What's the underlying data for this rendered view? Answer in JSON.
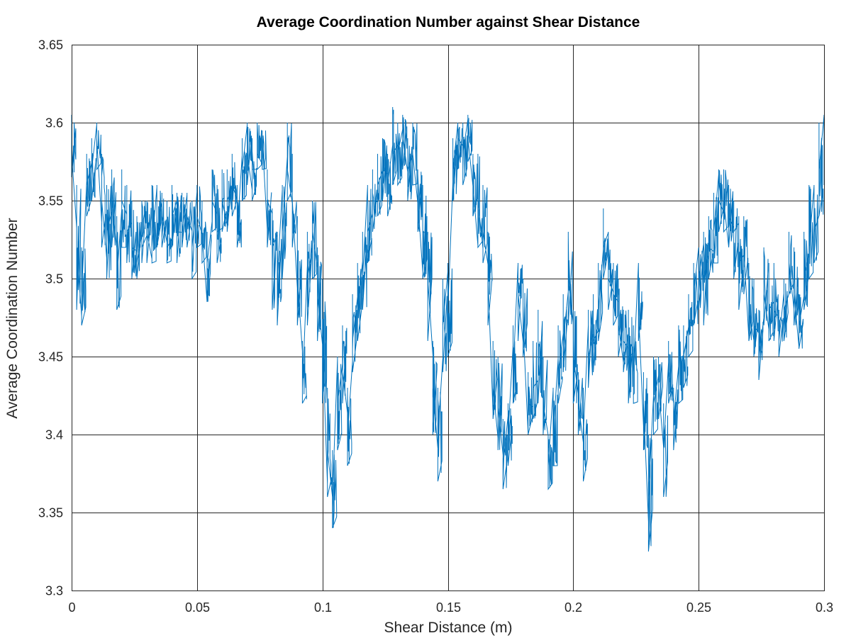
{
  "chart_data": {
    "type": "line",
    "title": "Average Coordination Number against Shear Distance",
    "xlabel": "Shear Distance (m)",
    "ylabel": "Average Coordination Number",
    "xlim": [
      0,
      0.3
    ],
    "ylim": [
      3.3,
      3.65
    ],
    "xticks": [
      0,
      0.05,
      0.1,
      0.15,
      0.2,
      0.25,
      0.3
    ],
    "yticks": [
      3.3,
      3.35,
      3.4,
      3.45,
      3.5,
      3.55,
      3.6,
      3.65
    ],
    "xtick_labels": [
      "0",
      "0.05",
      "0.1",
      "0.15",
      "0.2",
      "0.25",
      "0.3"
    ],
    "ytick_labels": [
      "3.3",
      "3.35",
      "3.4",
      "3.45",
      "3.5",
      "3.55",
      "3.6",
      "3.65"
    ],
    "grid": true,
    "color": "#0072bd",
    "series": [
      {
        "x": [
          0,
          0.002,
          0.004,
          0.006,
          0.008,
          0.01,
          0.012,
          0.014,
          0.016,
          0.018,
          0.02,
          0.022,
          0.024,
          0.026,
          0.028,
          0.03,
          0.032,
          0.034,
          0.036,
          0.038,
          0.04,
          0.042,
          0.044,
          0.046,
          0.048,
          0.05,
          0.052,
          0.054,
          0.056,
          0.058,
          0.06,
          0.062,
          0.064,
          0.066,
          0.068,
          0.07,
          0.072,
          0.074,
          0.076,
          0.078,
          0.08,
          0.082,
          0.084,
          0.086,
          0.088,
          0.09,
          0.092,
          0.094,
          0.096,
          0.098,
          0.1,
          0.102,
          0.104,
          0.106,
          0.108,
          0.11,
          0.112,
          0.114,
          0.116,
          0.118,
          0.12,
          0.122,
          0.124,
          0.126,
          0.128,
          0.13,
          0.132,
          0.134,
          0.136,
          0.138,
          0.14,
          0.142,
          0.144,
          0.146,
          0.148,
          0.15,
          0.152,
          0.154,
          0.156,
          0.158,
          0.16,
          0.162,
          0.164,
          0.166,
          0.168,
          0.17,
          0.172,
          0.174,
          0.176,
          0.178,
          0.18,
          0.182,
          0.184,
          0.186,
          0.188,
          0.19,
          0.192,
          0.194,
          0.196,
          0.198,
          0.2,
          0.202,
          0.204,
          0.206,
          0.208,
          0.21,
          0.212,
          0.214,
          0.216,
          0.218,
          0.22,
          0.222,
          0.224,
          0.226,
          0.228,
          0.23,
          0.232,
          0.234,
          0.236,
          0.238,
          0.24,
          0.242,
          0.244,
          0.246,
          0.248,
          0.25,
          0.252,
          0.254,
          0.256,
          0.258,
          0.26,
          0.262,
          0.264,
          0.266,
          0.268,
          0.27,
          0.272,
          0.274,
          0.276,
          0.278,
          0.28,
          0.282,
          0.284,
          0.286,
          0.288,
          0.29,
          0.292,
          0.294,
          0.296,
          0.298,
          0.3
        ],
        "y": [
          3.58,
          3.52,
          3.49,
          3.56,
          3.57,
          3.59,
          3.55,
          3.53,
          3.55,
          3.5,
          3.55,
          3.53,
          3.52,
          3.51,
          3.52,
          3.53,
          3.52,
          3.53,
          3.54,
          3.52,
          3.54,
          3.53,
          3.53,
          3.54,
          3.52,
          3.54,
          3.53,
          3.51,
          3.55,
          3.53,
          3.55,
          3.55,
          3.56,
          3.53,
          3.57,
          3.58,
          3.57,
          3.58,
          3.59,
          3.55,
          3.52,
          3.5,
          3.53,
          3.57,
          3.55,
          3.5,
          3.43,
          3.5,
          3.53,
          3.49,
          3.46,
          3.39,
          3.36,
          3.42,
          3.44,
          3.4,
          3.46,
          3.48,
          3.5,
          3.53,
          3.55,
          3.56,
          3.57,
          3.56,
          3.58,
          3.58,
          3.59,
          3.57,
          3.58,
          3.55,
          3.53,
          3.5,
          3.43,
          3.4,
          3.47,
          3.48,
          3.57,
          3.59,
          3.58,
          3.59,
          3.56,
          3.55,
          3.53,
          3.5,
          3.43,
          3.42,
          3.38,
          3.4,
          3.44,
          3.49,
          3.47,
          3.42,
          3.43,
          3.45,
          3.42,
          3.38,
          3.4,
          3.44,
          3.46,
          3.5,
          3.45,
          3.42,
          3.4,
          3.45,
          3.46,
          3.48,
          3.52,
          3.5,
          3.49,
          3.47,
          3.46,
          3.45,
          3.44,
          3.48,
          3.42,
          3.36,
          3.42,
          3.43,
          3.39,
          3.44,
          3.41,
          3.45,
          3.45,
          3.47,
          3.49,
          3.5,
          3.5,
          3.52,
          3.53,
          3.55,
          3.55,
          3.54,
          3.53,
          3.51,
          3.52,
          3.48,
          3.47,
          3.45,
          3.49,
          3.48,
          3.48,
          3.46,
          3.48,
          3.51,
          3.49,
          3.47,
          3.5,
          3.52,
          3.53,
          3.57,
          3.58
        ],
        "range": [
          [
            3.565,
            3.605
          ],
          [
            3.48,
            3.56
          ],
          [
            3.47,
            3.52
          ],
          [
            3.54,
            3.58
          ],
          [
            3.55,
            3.59
          ],
          [
            3.57,
            3.6
          ],
          [
            3.52,
            3.58
          ],
          [
            3.5,
            3.56
          ],
          [
            3.52,
            3.57
          ],
          [
            3.48,
            3.54
          ],
          [
            3.52,
            3.57
          ],
          [
            3.51,
            3.56
          ],
          [
            3.5,
            3.55
          ],
          [
            3.5,
            3.54
          ],
          [
            3.51,
            3.55
          ],
          [
            3.51,
            3.55
          ],
          [
            3.51,
            3.56
          ],
          [
            3.52,
            3.56
          ],
          [
            3.52,
            3.555
          ],
          [
            3.51,
            3.55
          ],
          [
            3.52,
            3.56
          ],
          [
            3.51,
            3.555
          ],
          [
            3.52,
            3.555
          ],
          [
            3.52,
            3.555
          ],
          [
            3.5,
            3.55
          ],
          [
            3.52,
            3.56
          ],
          [
            3.51,
            3.55
          ],
          [
            3.485,
            3.53
          ],
          [
            3.53,
            3.57
          ],
          [
            3.51,
            3.56
          ],
          [
            3.53,
            3.57
          ],
          [
            3.53,
            3.57
          ],
          [
            3.54,
            3.58
          ],
          [
            3.52,
            3.56
          ],
          [
            3.55,
            3.59
          ],
          [
            3.56,
            3.6
          ],
          [
            3.55,
            3.59
          ],
          [
            3.57,
            3.6
          ],
          [
            3.57,
            3.595
          ],
          [
            3.52,
            3.57
          ],
          [
            3.48,
            3.545
          ],
          [
            3.47,
            3.53
          ],
          [
            3.5,
            3.56
          ],
          [
            3.55,
            3.6
          ],
          [
            3.52,
            3.58
          ],
          [
            3.47,
            3.54
          ],
          [
            3.42,
            3.46
          ],
          [
            3.47,
            3.53
          ],
          [
            3.5,
            3.55
          ],
          [
            3.46,
            3.52
          ],
          [
            3.42,
            3.5
          ],
          [
            3.36,
            3.43
          ],
          [
            3.34,
            3.39
          ],
          [
            3.39,
            3.45
          ],
          [
            3.42,
            3.47
          ],
          [
            3.38,
            3.43
          ],
          [
            3.44,
            3.49
          ],
          [
            3.46,
            3.51
          ],
          [
            3.48,
            3.53
          ],
          [
            3.51,
            3.56
          ],
          [
            3.53,
            3.57
          ],
          [
            3.54,
            3.58
          ],
          [
            3.55,
            3.59
          ],
          [
            3.54,
            3.58
          ],
          [
            3.56,
            3.61
          ],
          [
            3.56,
            3.6
          ],
          [
            3.57,
            3.605
          ],
          [
            3.55,
            3.59
          ],
          [
            3.56,
            3.6
          ],
          [
            3.53,
            3.57
          ],
          [
            3.5,
            3.56
          ],
          [
            3.46,
            3.53
          ],
          [
            3.4,
            3.46
          ],
          [
            3.37,
            3.43
          ],
          [
            3.44,
            3.5
          ],
          [
            3.45,
            3.51
          ],
          [
            3.55,
            3.59
          ],
          [
            3.57,
            3.6
          ],
          [
            3.56,
            3.6
          ],
          [
            3.575,
            3.605
          ],
          [
            3.54,
            3.58
          ],
          [
            3.52,
            3.58
          ],
          [
            3.51,
            3.56
          ],
          [
            3.47,
            3.53
          ],
          [
            3.41,
            3.46
          ],
          [
            3.39,
            3.45
          ],
          [
            3.365,
            3.41
          ],
          [
            3.38,
            3.42
          ],
          [
            3.42,
            3.47
          ],
          [
            3.46,
            3.51
          ],
          [
            3.45,
            3.5
          ],
          [
            3.4,
            3.44
          ],
          [
            3.41,
            3.46
          ],
          [
            3.42,
            3.48
          ],
          [
            3.4,
            3.45
          ],
          [
            3.365,
            3.4
          ],
          [
            3.38,
            3.43
          ],
          [
            3.42,
            3.47
          ],
          [
            3.44,
            3.49
          ],
          [
            3.47,
            3.53
          ],
          [
            3.42,
            3.48
          ],
          [
            3.4,
            3.44
          ],
          [
            3.37,
            3.43
          ],
          [
            3.43,
            3.48
          ],
          [
            3.44,
            3.49
          ],
          [
            3.46,
            3.51
          ],
          [
            3.5,
            3.545
          ],
          [
            3.48,
            3.53
          ],
          [
            3.47,
            3.51
          ],
          [
            3.45,
            3.5
          ],
          [
            3.44,
            3.48
          ],
          [
            3.42,
            3.48
          ],
          [
            3.42,
            3.47
          ],
          [
            3.46,
            3.51
          ],
          [
            3.39,
            3.44
          ],
          [
            3.325,
            3.4
          ],
          [
            3.4,
            3.45
          ],
          [
            3.41,
            3.45
          ],
          [
            3.36,
            3.42
          ],
          [
            3.42,
            3.46
          ],
          [
            3.39,
            3.43
          ],
          [
            3.42,
            3.47
          ],
          [
            3.43,
            3.47
          ],
          [
            3.45,
            3.49
          ],
          [
            3.47,
            3.51
          ],
          [
            3.48,
            3.52
          ],
          [
            3.47,
            3.53
          ],
          [
            3.5,
            3.54
          ],
          [
            3.51,
            3.555
          ],
          [
            3.53,
            3.57
          ],
          [
            3.53,
            3.57
          ],
          [
            3.52,
            3.56
          ],
          [
            3.5,
            3.55
          ],
          [
            3.48,
            3.54
          ],
          [
            3.49,
            3.54
          ],
          [
            3.46,
            3.51
          ],
          [
            3.45,
            3.5
          ],
          [
            3.435,
            3.48
          ],
          [
            3.47,
            3.52
          ],
          [
            3.46,
            3.51
          ],
          [
            3.46,
            3.51
          ],
          [
            3.45,
            3.48
          ],
          [
            3.46,
            3.5
          ],
          [
            3.49,
            3.53
          ],
          [
            3.47,
            3.52
          ],
          [
            3.455,
            3.49
          ],
          [
            3.48,
            3.53
          ],
          [
            3.5,
            3.56
          ],
          [
            3.51,
            3.56
          ],
          [
            3.54,
            3.6
          ],
          [
            3.56,
            3.605
          ]
        ]
      }
    ]
  }
}
